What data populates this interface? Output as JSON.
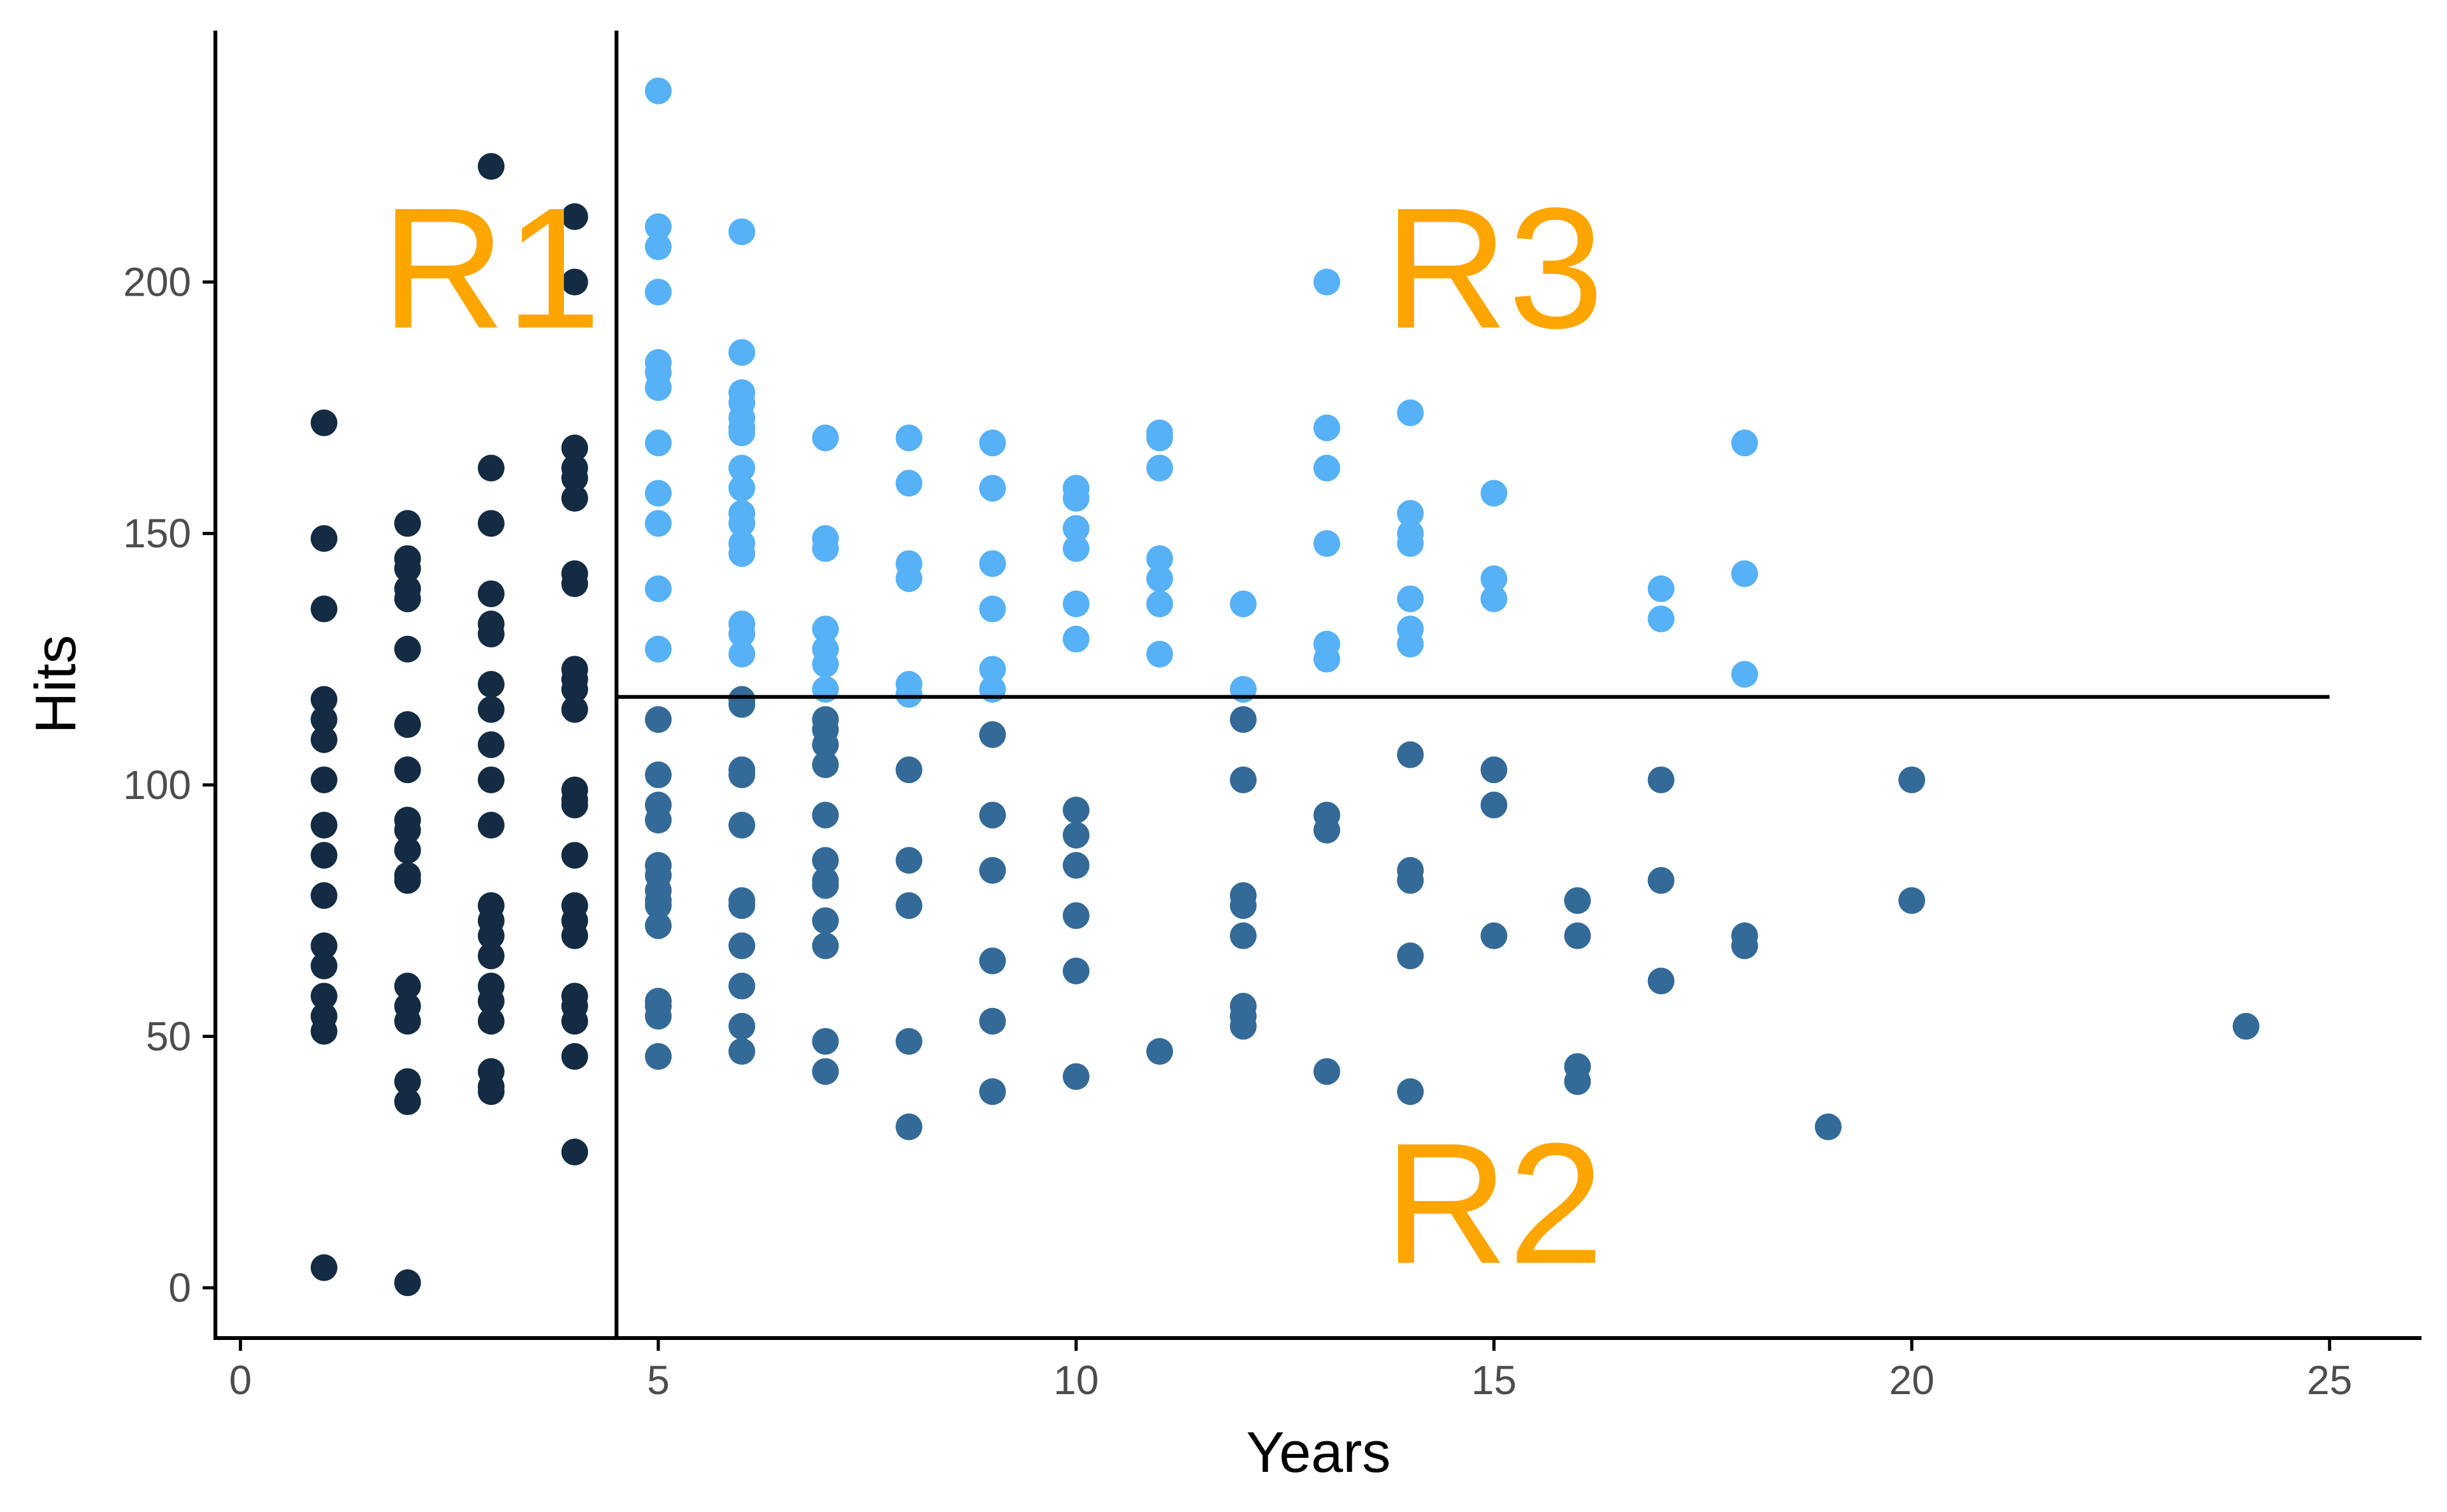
{
  "chart_data": {
    "type": "scatter",
    "xlabel": "Years",
    "ylabel": "Hits",
    "xlim": [
      -0.3,
      26.1
    ],
    "ylim": [
      -10,
      250
    ],
    "x_ticks": [
      "0",
      "5",
      "10",
      "15",
      "20",
      "25"
    ],
    "y_ticks": [
      "0",
      "50",
      "100",
      "150",
      "200"
    ],
    "splits": {
      "years_split": 4.5,
      "hits_split": 117.5,
      "hits_split_range": [
        4.5,
        25
      ]
    },
    "region_labels": [
      {
        "text": "R1",
        "x": 3.0,
        "y": 200
      },
      {
        "text": "R3",
        "x": 15.0,
        "y": 200
      },
      {
        "text": "R2",
        "x": 15.0,
        "y": 14
      }
    ],
    "colors": {
      "R1": "#132b43",
      "R2": "#336a98",
      "R3": "#56b1f7",
      "region_label": "#ffa500",
      "axis": "#000000"
    },
    "series": [
      {
        "name": "R1",
        "points": [
          [
            1,
            172
          ],
          [
            1,
            149
          ],
          [
            1,
            135
          ],
          [
            1,
            117
          ],
          [
            1,
            113
          ],
          [
            1,
            109
          ],
          [
            1,
            101
          ],
          [
            1,
            92
          ],
          [
            1,
            86
          ],
          [
            1,
            78
          ],
          [
            1,
            68
          ],
          [
            1,
            64
          ],
          [
            1,
            58
          ],
          [
            1,
            54
          ],
          [
            1,
            51
          ],
          [
            1,
            4
          ],
          [
            2,
            152
          ],
          [
            2,
            145
          ],
          [
            2,
            143
          ],
          [
            2,
            139
          ],
          [
            2,
            137
          ],
          [
            2,
            127
          ],
          [
            2,
            112
          ],
          [
            2,
            103
          ],
          [
            2,
            93
          ],
          [
            2,
            91
          ],
          [
            2,
            87
          ],
          [
            2,
            82
          ],
          [
            2,
            81
          ],
          [
            2,
            60
          ],
          [
            2,
            56
          ],
          [
            2,
            53
          ],
          [
            2,
            41
          ],
          [
            2,
            37
          ],
          [
            2,
            1
          ],
          [
            3,
            223
          ],
          [
            3,
            163
          ],
          [
            3,
            152
          ],
          [
            3,
            138
          ],
          [
            3,
            132
          ],
          [
            3,
            130
          ],
          [
            3,
            120
          ],
          [
            3,
            115
          ],
          [
            3,
            108
          ],
          [
            3,
            101
          ],
          [
            3,
            92
          ],
          [
            3,
            76
          ],
          [
            3,
            73
          ],
          [
            3,
            70
          ],
          [
            3,
            66
          ],
          [
            3,
            60
          ],
          [
            3,
            57
          ],
          [
            3,
            53
          ],
          [
            3,
            43
          ],
          [
            3,
            40
          ],
          [
            3,
            39
          ],
          [
            4,
            213
          ],
          [
            4,
            200
          ],
          [
            4,
            167
          ],
          [
            4,
            163
          ],
          [
            4,
            161
          ],
          [
            4,
            157
          ],
          [
            4,
            142
          ],
          [
            4,
            140
          ],
          [
            4,
            123
          ],
          [
            4,
            121
          ],
          [
            4,
            119
          ],
          [
            4,
            115
          ],
          [
            4,
            99
          ],
          [
            4,
            97
          ],
          [
            4,
            96
          ],
          [
            4,
            86
          ],
          [
            4,
            76
          ],
          [
            4,
            73
          ],
          [
            4,
            70
          ],
          [
            4,
            58
          ],
          [
            4,
            56
          ],
          [
            4,
            53
          ],
          [
            4,
            46
          ],
          [
            4,
            27
          ]
        ]
      },
      {
        "name": "R2",
        "points": [
          [
            5,
            113
          ],
          [
            5,
            102
          ],
          [
            5,
            96
          ],
          [
            5,
            93
          ],
          [
            5,
            84
          ],
          [
            5,
            82
          ],
          [
            5,
            79
          ],
          [
            5,
            77
          ],
          [
            5,
            76
          ],
          [
            5,
            72
          ],
          [
            5,
            57
          ],
          [
            5,
            56
          ],
          [
            5,
            54
          ],
          [
            5,
            46
          ],
          [
            6,
            117
          ],
          [
            6,
            116
          ],
          [
            6,
            103
          ],
          [
            6,
            102
          ],
          [
            6,
            92
          ],
          [
            6,
            77
          ],
          [
            6,
            76
          ],
          [
            6,
            68
          ],
          [
            6,
            60
          ],
          [
            6,
            52
          ],
          [
            6,
            47
          ],
          [
            7,
            113
          ],
          [
            7,
            111
          ],
          [
            7,
            108
          ],
          [
            7,
            104
          ],
          [
            7,
            94
          ],
          [
            7,
            85
          ],
          [
            7,
            81
          ],
          [
            7,
            80
          ],
          [
            7,
            73
          ],
          [
            7,
            68
          ],
          [
            7,
            49
          ],
          [
            7,
            43
          ],
          [
            8,
            103
          ],
          [
            8,
            85
          ],
          [
            8,
            76
          ],
          [
            8,
            49
          ],
          [
            8,
            32
          ],
          [
            9,
            110
          ],
          [
            9,
            94
          ],
          [
            9,
            83
          ],
          [
            9,
            65
          ],
          [
            9,
            53
          ],
          [
            9,
            39
          ],
          [
            10,
            95
          ],
          [
            10,
            90
          ],
          [
            10,
            84
          ],
          [
            10,
            74
          ],
          [
            10,
            63
          ],
          [
            10,
            42
          ],
          [
            11,
            47
          ],
          [
            12,
            113
          ],
          [
            12,
            101
          ],
          [
            12,
            78
          ],
          [
            12,
            76
          ],
          [
            12,
            70
          ],
          [
            12,
            56
          ],
          [
            12,
            54
          ],
          [
            12,
            52
          ],
          [
            13,
            94
          ],
          [
            13,
            91
          ],
          [
            13,
            43
          ],
          [
            14,
            106
          ],
          [
            14,
            83
          ],
          [
            14,
            81
          ],
          [
            14,
            66
          ],
          [
            14,
            39
          ],
          [
            15,
            103
          ],
          [
            15,
            96
          ],
          [
            15,
            70
          ],
          [
            16,
            77
          ],
          [
            16,
            70
          ],
          [
            16,
            44
          ],
          [
            16,
            41
          ],
          [
            17,
            101
          ],
          [
            17,
            81
          ],
          [
            17,
            61
          ],
          [
            18,
            70
          ],
          [
            18,
            68
          ],
          [
            19,
            32
          ],
          [
            20,
            101
          ],
          [
            20,
            77
          ],
          [
            24,
            52
          ]
        ]
      },
      {
        "name": "R3",
        "points": [
          [
            5,
            238
          ],
          [
            5,
            211
          ],
          [
            5,
            207
          ],
          [
            5,
            198
          ],
          [
            5,
            184
          ],
          [
            5,
            182
          ],
          [
            5,
            179
          ],
          [
            5,
            168
          ],
          [
            5,
            158
          ],
          [
            5,
            152
          ],
          [
            5,
            139
          ],
          [
            5,
            127
          ],
          [
            6,
            210
          ],
          [
            6,
            186
          ],
          [
            6,
            178
          ],
          [
            6,
            176
          ],
          [
            6,
            173
          ],
          [
            6,
            171
          ],
          [
            6,
            170
          ],
          [
            6,
            163
          ],
          [
            6,
            159
          ],
          [
            6,
            154
          ],
          [
            6,
            152
          ],
          [
            6,
            148
          ],
          [
            6,
            146
          ],
          [
            6,
            132
          ],
          [
            6,
            130
          ],
          [
            6,
            126
          ],
          [
            7,
            169
          ],
          [
            7,
            149
          ],
          [
            7,
            147
          ],
          [
            7,
            131
          ],
          [
            7,
            127
          ],
          [
            7,
            124
          ],
          [
            7,
            119
          ],
          [
            8,
            169
          ],
          [
            8,
            160
          ],
          [
            8,
            144
          ],
          [
            8,
            141
          ],
          [
            8,
            120
          ],
          [
            8,
            118
          ],
          [
            9,
            168
          ],
          [
            9,
            159
          ],
          [
            9,
            144
          ],
          [
            9,
            135
          ],
          [
            9,
            123
          ],
          [
            9,
            119
          ],
          [
            10,
            159
          ],
          [
            10,
            157
          ],
          [
            10,
            151
          ],
          [
            10,
            147
          ],
          [
            10,
            136
          ],
          [
            10,
            129
          ],
          [
            11,
            170
          ],
          [
            11,
            169
          ],
          [
            11,
            163
          ],
          [
            11,
            145
          ],
          [
            11,
            141
          ],
          [
            11,
            136
          ],
          [
            11,
            126
          ],
          [
            12,
            136
          ],
          [
            12,
            119
          ],
          [
            13,
            200
          ],
          [
            13,
            171
          ],
          [
            13,
            163
          ],
          [
            13,
            148
          ],
          [
            13,
            128
          ],
          [
            13,
            125
          ],
          [
            14,
            174
          ],
          [
            14,
            154
          ],
          [
            14,
            150
          ],
          [
            14,
            148
          ],
          [
            14,
            137
          ],
          [
            14,
            131
          ],
          [
            14,
            128
          ],
          [
            15,
            158
          ],
          [
            15,
            141
          ],
          [
            15,
            137
          ],
          [
            17,
            139
          ],
          [
            17,
            133
          ],
          [
            18,
            168
          ],
          [
            18,
            142
          ],
          [
            18,
            122
          ]
        ]
      }
    ]
  }
}
